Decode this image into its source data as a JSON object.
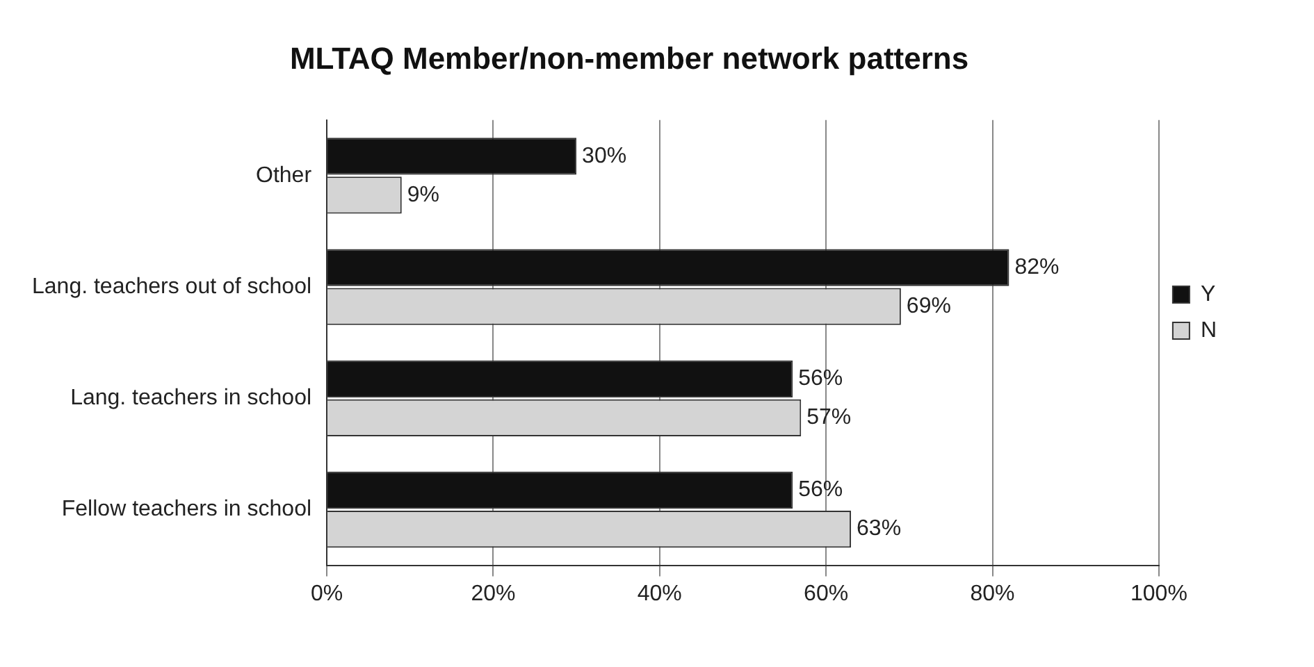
{
  "chart_data": {
    "type": "bar",
    "title": "MLTAQ Member/non-member network patterns",
    "orientation": "horizontal",
    "categories": [
      "Other",
      "Lang. teachers out of school",
      "Lang. teachers in school",
      "Fellow teachers in school"
    ],
    "series": [
      {
        "name": "Y",
        "color": "#111111",
        "values": [
          30,
          82,
          56,
          56
        ],
        "value_labels": [
          "30%",
          "82%",
          "56%",
          "56%"
        ]
      },
      {
        "name": "N",
        "color": "#d4d4d4",
        "values": [
          9,
          69,
          57,
          63
        ],
        "value_labels": [
          "9%",
          "69%",
          "57%",
          "63%"
        ]
      }
    ],
    "xlim": [
      0,
      100
    ],
    "xticks": [
      {
        "value": 0,
        "label": "0%"
      },
      {
        "value": 20,
        "label": "20%"
      },
      {
        "value": 40,
        "label": "40%"
      },
      {
        "value": 60,
        "label": "60%"
      },
      {
        "value": 80,
        "label": "80%"
      },
      {
        "value": 100,
        "label": "100%"
      }
    ],
    "grid": "x",
    "legend": "right"
  }
}
